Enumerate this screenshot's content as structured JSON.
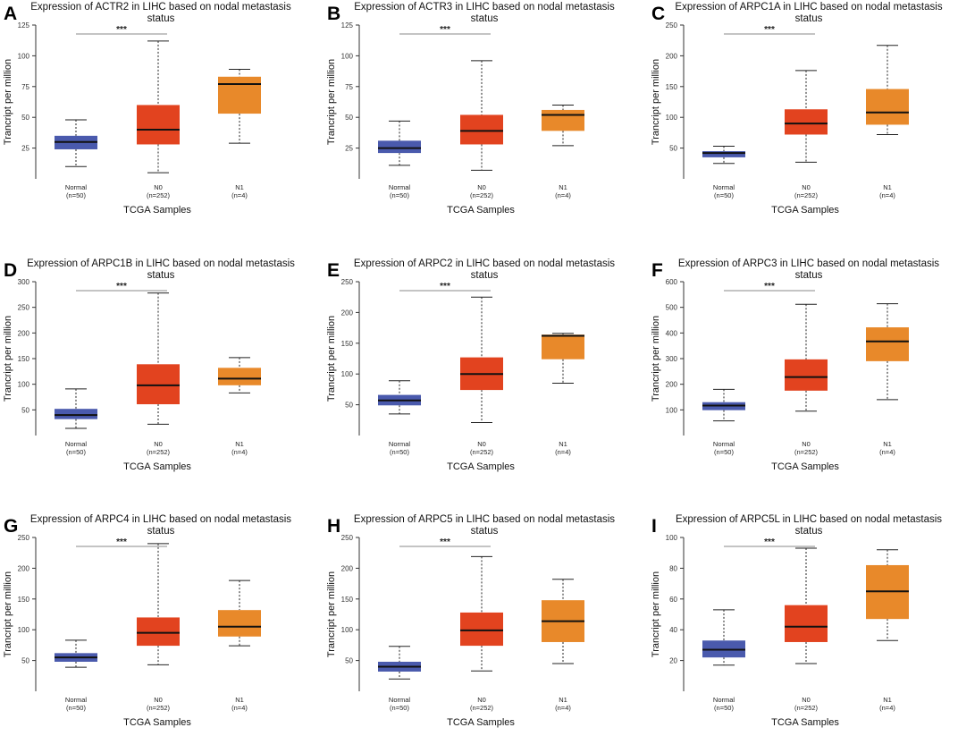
{
  "figure": {
    "x_axis_title": "TCGA Samples",
    "y_axis_title": "Trancript per million",
    "group_labels": [
      "Normal",
      "N0",
      "N1"
    ],
    "group_counts": [
      "(n=50)",
      "(n=252)",
      "(n=4)"
    ],
    "colors": {
      "Normal": "#4a5aad",
      "N0": "#e2431f",
      "N1": "#e8892a",
      "median": "#111111",
      "axis": "#333333",
      "sig_line": "#888888"
    }
  },
  "chart_data": [
    {
      "panel": "A",
      "type": "boxplot",
      "title_line1": "Expression of ACTR2 in LIHC based on nodal metastasis",
      "title_line2": "status",
      "ylim": [
        0,
        125
      ],
      "yticks": [
        25,
        50,
        75,
        100,
        125
      ],
      "yticklabels": [
        "25",
        "50",
        "75",
        "100",
        "125"
      ],
      "significance": "***",
      "boxes": [
        {
          "group": "Normal",
          "whisker_low": 10,
          "q1": 24,
          "median": 30,
          "q3": 35,
          "whisker_high": 48
        },
        {
          "group": "N0",
          "whisker_low": 5,
          "q1": 28,
          "median": 40,
          "q3": 60,
          "whisker_high": 112
        },
        {
          "group": "N1",
          "whisker_low": 29,
          "q1": 53,
          "median": 77,
          "q3": 83,
          "whisker_high": 89
        }
      ]
    },
    {
      "panel": "B",
      "type": "boxplot",
      "title_line1": "Expression of ACTR3 in LIHC based on nodal metastasis",
      "title_line2": "status",
      "ylim": [
        0,
        125
      ],
      "yticks": [
        25,
        50,
        75,
        100,
        125
      ],
      "yticklabels": [
        "25",
        "50",
        "75",
        "100",
        "125"
      ],
      "significance": "***",
      "boxes": [
        {
          "group": "Normal",
          "whisker_low": 11,
          "q1": 21,
          "median": 25,
          "q3": 31,
          "whisker_high": 47
        },
        {
          "group": "N0",
          "whisker_low": 7,
          "q1": 28,
          "median": 39,
          "q3": 52,
          "whisker_high": 96
        },
        {
          "group": "N1",
          "whisker_low": 27,
          "q1": 39,
          "median": 52,
          "q3": 56,
          "whisker_high": 60
        }
      ]
    },
    {
      "panel": "C",
      "type": "boxplot",
      "title_line1": "Expression of ARPC1A in LIHC based on nodal metastasis",
      "title_line2": "status",
      "ylim": [
        0,
        250
      ],
      "yticks": [
        50,
        100,
        150,
        200,
        250
      ],
      "yticklabels": [
        "50",
        "100",
        "150",
        "200",
        "250"
      ],
      "significance": "***",
      "boxes": [
        {
          "group": "Normal",
          "whisker_low": 25,
          "q1": 35,
          "median": 42,
          "q3": 45,
          "whisker_high": 53
        },
        {
          "group": "N0",
          "whisker_low": 27,
          "q1": 72,
          "median": 90,
          "q3": 113,
          "whisker_high": 176
        },
        {
          "group": "N1",
          "whisker_low": 72,
          "q1": 88,
          "median": 108,
          "q3": 146,
          "whisker_high": 217
        }
      ]
    },
    {
      "panel": "D",
      "type": "boxplot",
      "title_line1": "Expression of ARPC1B in LIHC based on nodal metastasis",
      "title_line2": "status",
      "ylim": [
        0,
        300
      ],
      "yticks": [
        50,
        100,
        150,
        200,
        250,
        300
      ],
      "yticklabels": [
        "50",
        "100",
        "150",
        "200",
        "250",
        "300"
      ],
      "significance": "***",
      "boxes": [
        {
          "group": "Normal",
          "whisker_low": 14,
          "q1": 32,
          "median": 40,
          "q3": 52,
          "whisker_high": 91
        },
        {
          "group": "N0",
          "whisker_low": 22,
          "q1": 61,
          "median": 98,
          "q3": 139,
          "whisker_high": 278
        },
        {
          "group": "N1",
          "whisker_low": 83,
          "q1": 98,
          "median": 111,
          "q3": 132,
          "whisker_high": 152
        }
      ]
    },
    {
      "panel": "E",
      "type": "boxplot",
      "title_line1": "Expression of ARPC2 in LIHC based on nodal metastasis",
      "title_line2": "status",
      "ylim": [
        0,
        250
      ],
      "yticks": [
        50,
        100,
        150,
        200,
        250
      ],
      "yticklabels": [
        "50",
        "100",
        "150",
        "200",
        "250"
      ],
      "significance": "***",
      "boxes": [
        {
          "group": "Normal",
          "whisker_low": 35,
          "q1": 49,
          "median": 57,
          "q3": 66,
          "whisker_high": 89
        },
        {
          "group": "N0",
          "whisker_low": 21,
          "q1": 74,
          "median": 100,
          "q3": 127,
          "whisker_high": 225
        },
        {
          "group": "N1",
          "whisker_low": 85,
          "q1": 124,
          "median": 162,
          "q3": 164,
          "whisker_high": 166
        }
      ]
    },
    {
      "panel": "F",
      "type": "boxplot",
      "title_line1": "Expression of ARPC3 in LIHC based on nodal metastasis",
      "title_line2": "status",
      "ylim": [
        0,
        600
      ],
      "yticks": [
        100,
        200,
        300,
        400,
        500,
        600
      ],
      "yticklabels": [
        "100",
        "200",
        "300",
        "400",
        "500",
        "600"
      ],
      "significance": "***",
      "boxes": [
        {
          "group": "Normal",
          "whisker_low": 57,
          "q1": 99,
          "median": 117,
          "q3": 130,
          "whisker_high": 180
        },
        {
          "group": "N0",
          "whisker_low": 95,
          "q1": 175,
          "median": 228,
          "q3": 297,
          "whisker_high": 512
        },
        {
          "group": "N1",
          "whisker_low": 140,
          "q1": 290,
          "median": 367,
          "q3": 422,
          "whisker_high": 514
        }
      ]
    },
    {
      "panel": "G",
      "type": "boxplot",
      "title_line1": "Expression of ARPC4 in LIHC based on nodal metastasis",
      "title_line2": "status",
      "ylim": [
        0,
        250
      ],
      "yticks": [
        50,
        100,
        150,
        200,
        250
      ],
      "yticklabels": [
        "50",
        "100",
        "150",
        "200",
        "250"
      ],
      "significance": "***",
      "boxes": [
        {
          "group": "Normal",
          "whisker_low": 39,
          "q1": 48,
          "median": 55,
          "q3": 62,
          "whisker_high": 83
        },
        {
          "group": "N0",
          "whisker_low": 43,
          "q1": 74,
          "median": 95,
          "q3": 120,
          "whisker_high": 240
        },
        {
          "group": "N1",
          "whisker_low": 74,
          "q1": 89,
          "median": 105,
          "q3": 132,
          "whisker_high": 180
        }
      ]
    },
    {
      "panel": "H",
      "type": "boxplot",
      "title_line1": "Expression of ARPC5 in LIHC based on nodal metastasis",
      "title_line2": "status",
      "ylim": [
        0,
        250
      ],
      "yticks": [
        50,
        100,
        150,
        200,
        250
      ],
      "yticklabels": [
        "50",
        "100",
        "150",
        "200",
        "250"
      ],
      "significance": "***",
      "boxes": [
        {
          "group": "Normal",
          "whisker_low": 20,
          "q1": 32,
          "median": 40,
          "q3": 48,
          "whisker_high": 73
        },
        {
          "group": "N0",
          "whisker_low": 33,
          "q1": 74,
          "median": 99,
          "q3": 128,
          "whisker_high": 219
        },
        {
          "group": "N1",
          "whisker_low": 45,
          "q1": 80,
          "median": 114,
          "q3": 148,
          "whisker_high": 182
        }
      ]
    },
    {
      "panel": "I",
      "type": "boxplot",
      "title_line1": "Expression of ARPC5L in LIHC based on nodal metastasis",
      "title_line2": "status",
      "ylim": [
        0,
        100
      ],
      "yticks": [
        20,
        40,
        60,
        80,
        100
      ],
      "yticklabels": [
        "20",
        "40",
        "60",
        "80",
        "100"
      ],
      "significance": "***",
      "boxes": [
        {
          "group": "Normal",
          "whisker_low": 17,
          "q1": 22,
          "median": 27,
          "q3": 33,
          "whisker_high": 53
        },
        {
          "group": "N0",
          "whisker_low": 18,
          "q1": 32,
          "median": 42,
          "q3": 56,
          "whisker_high": 93
        },
        {
          "group": "N1",
          "whisker_low": 33,
          "q1": 47,
          "median": 65,
          "q3": 82,
          "whisker_high": 92
        }
      ]
    }
  ]
}
